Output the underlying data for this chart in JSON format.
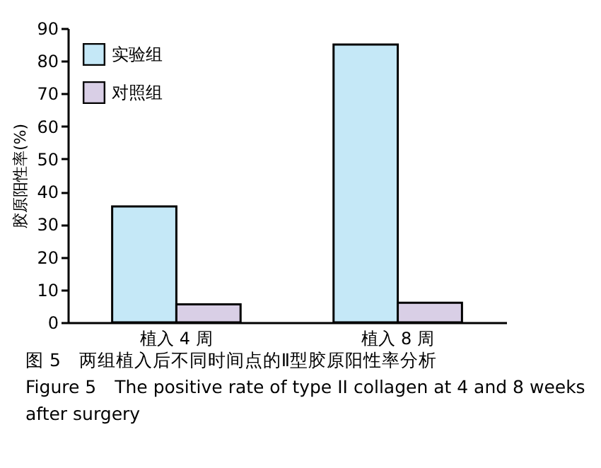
{
  "chart_data": {
    "type": "bar",
    "ylabel": "胶原阳性率(%)",
    "categories": [
      "植入 4 周",
      "植入 8 周"
    ],
    "series": [
      {
        "name": "实验组",
        "color": "#c5e8f7",
        "values": [
          35.5,
          85
        ]
      },
      {
        "name": "对照组",
        "color": "#d9cfe6",
        "values": [
          5.5,
          6
        ]
      }
    ],
    "ylim": [
      0,
      90
    ],
    "yticks": [
      0,
      10,
      20,
      30,
      40,
      50,
      60,
      70,
      80,
      90
    ],
    "legend": "top left",
    "grid": false,
    "annotations": [
      "图 5　两组植入后不同时间点的Ⅱ型胶原阳性率分析",
      "Figure 5　The positive rate of type II collagen at 4 and 8 weeks after surgery"
    ]
  }
}
